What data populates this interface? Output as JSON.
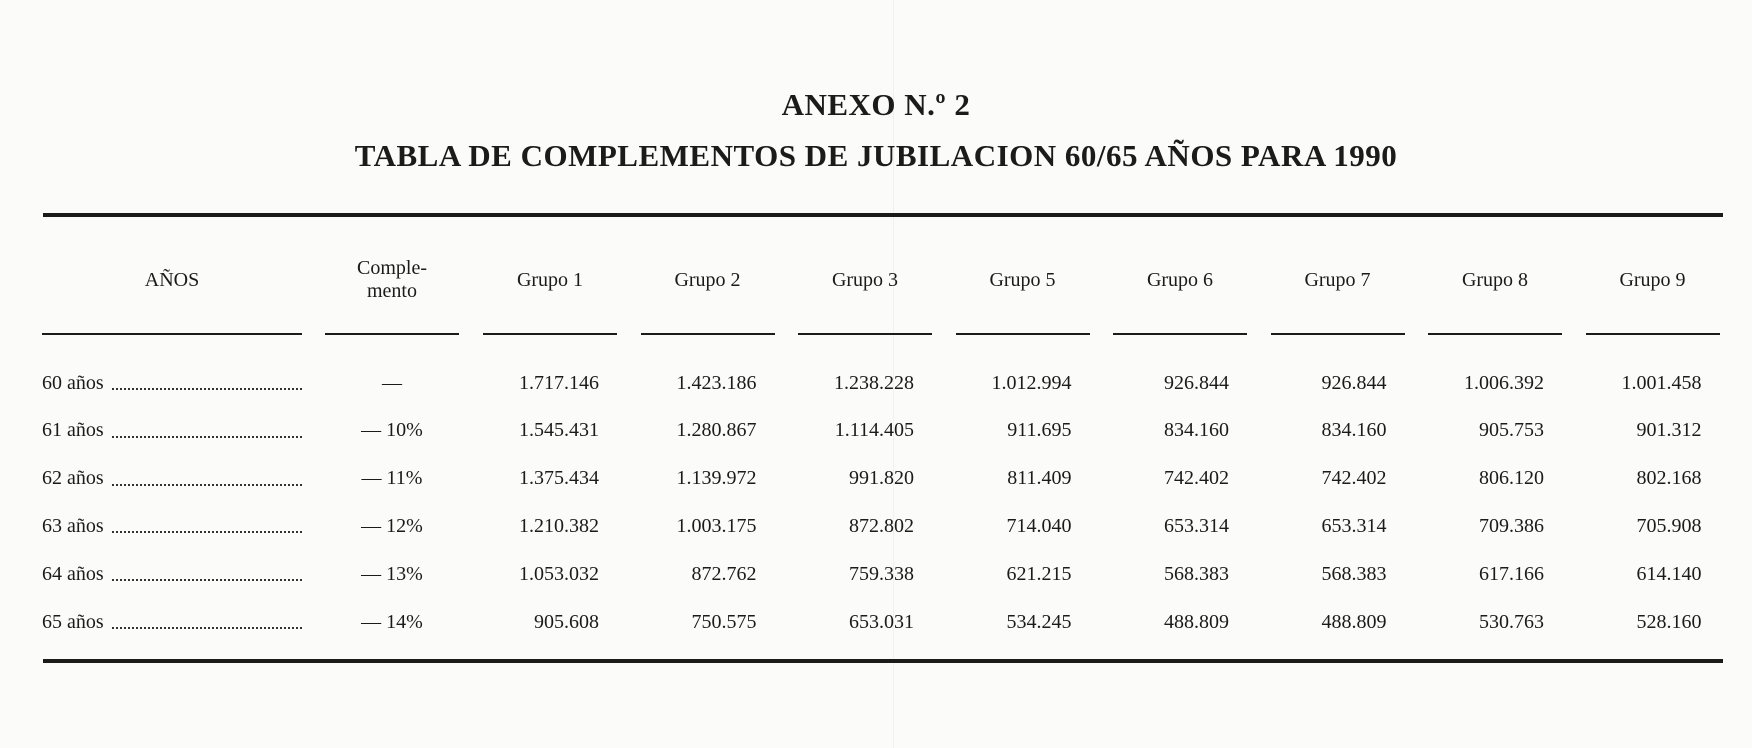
{
  "annex_title": "ANEXO N.º 2",
  "table_title": "TABLA DE COMPLEMENTOS DE JUBILACION 60/65 AÑOS PARA 1990",
  "headers": {
    "anos": "AÑOS",
    "complemento_line1": "Comple-",
    "complemento_line2": "mento",
    "grupos": [
      "Grupo 1",
      "Grupo 2",
      "Grupo 3",
      "Grupo 5",
      "Grupo 6",
      "Grupo 7",
      "Grupo 8",
      "Grupo 9"
    ]
  },
  "rows": [
    {
      "edad": "60 años",
      "complemento": "—",
      "valores": [
        "1.717.146",
        "1.423.186",
        "1.238.228",
        "1.012.994",
        "926.844",
        "926.844",
        "1.006.392",
        "1.001.458"
      ]
    },
    {
      "edad": "61 años",
      "complemento": "— 10%",
      "valores": [
        "1.545.431",
        "1.280.867",
        "1.114.405",
        "911.695",
        "834.160",
        "834.160",
        "905.753",
        "901.312"
      ]
    },
    {
      "edad": "62 años",
      "complemento": "— 11%",
      "valores": [
        "1.375.434",
        "1.139.972",
        "991.820",
        "811.409",
        "742.402",
        "742.402",
        "806.120",
        "802.168"
      ]
    },
    {
      "edad": "63 años",
      "complemento": "— 12%",
      "valores": [
        "1.210.382",
        "1.003.175",
        "872.802",
        "714.040",
        "653.314",
        "653.314",
        "709.386",
        "705.908"
      ]
    },
    {
      "edad": "64 años",
      "complemento": "— 13%",
      "valores": [
        "1.053.032",
        "872.762",
        "759.338",
        "621.215",
        "568.383",
        "568.383",
        "617.166",
        "614.140"
      ]
    },
    {
      "edad": "65 años",
      "complemento": "— 14%",
      "valores": [
        "905.608",
        "750.575",
        "653.031",
        "534.245",
        "488.809",
        "488.809",
        "530.763",
        "528.160"
      ]
    }
  ]
}
